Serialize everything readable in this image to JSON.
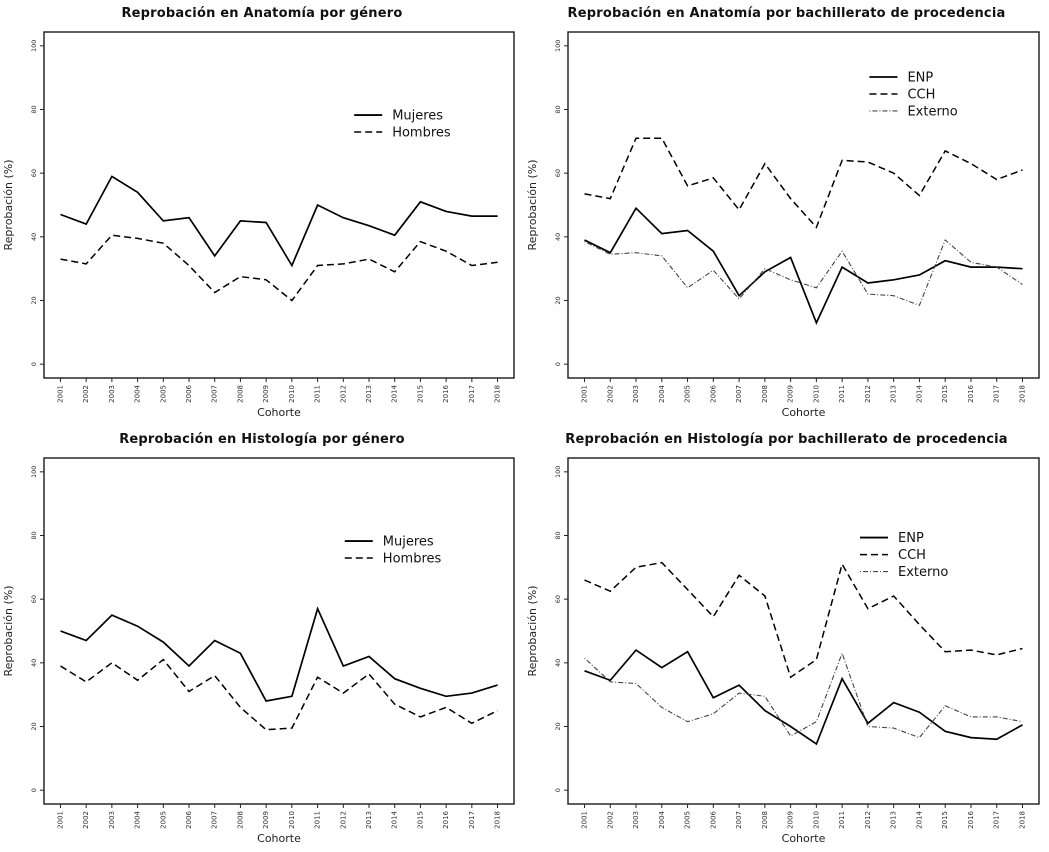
{
  "page": {
    "background": "#ffffff",
    "line_color": "#000000",
    "dashdot_color": "#444444",
    "box_color": "#1a1a1a"
  },
  "chart_data": [
    {
      "type": "line",
      "title": "Reprobación en Anatomía por género",
      "xlabel": "Cohorte",
      "ylabel": "Reprobación (%)",
      "ylim": [
        0,
        100
      ],
      "y_ticks": [
        0,
        20,
        40,
        60,
        80,
        100
      ],
      "grid": false,
      "legend_position": "upper-right-inside",
      "legend": {
        "x": 0.66,
        "y": 0.24
      },
      "categories": [
        "2001",
        "2002",
        "2003",
        "2004",
        "2005",
        "2006",
        "2007",
        "2008",
        "2009",
        "2010",
        "2011",
        "2012",
        "2013",
        "2014",
        "2015",
        "2016",
        "2017",
        "2018"
      ],
      "series": [
        {
          "name": "Mujeres",
          "style": "solid",
          "values": [
            47,
            44,
            59,
            54,
            45,
            46,
            34,
            45,
            44.5,
            31,
            50,
            46,
            43.5,
            40.5,
            51,
            48,
            46.5,
            46.5
          ]
        },
        {
          "name": "Hombres",
          "style": "dashed",
          "values": [
            33,
            31.5,
            40.5,
            39.5,
            38,
            31,
            22.5,
            27.5,
            26.5,
            20,
            31,
            31.5,
            33,
            29,
            38.5,
            35.5,
            31,
            32
          ]
        }
      ]
    },
    {
      "type": "line",
      "title": "Reprobación en Anatomía por bachillerato de procedencia",
      "xlabel": "Cohorte",
      "ylabel": "Reprobación (%)",
      "ylim": [
        0,
        100
      ],
      "y_ticks": [
        0,
        20,
        40,
        60,
        80,
        100
      ],
      "grid": false,
      "legend_position": "upper-right-inside",
      "legend": {
        "x": 0.64,
        "y": 0.13
      },
      "categories": [
        "2001",
        "2002",
        "2003",
        "2004",
        "2005",
        "2006",
        "2007",
        "2008",
        "2009",
        "2010",
        "2011",
        "2012",
        "2013",
        "2014",
        "2015",
        "2016",
        "2017",
        "2018"
      ],
      "series": [
        {
          "name": "ENP",
          "style": "solid",
          "values": [
            39,
            35,
            49,
            41,
            42,
            35.5,
            21.5,
            29,
            33.5,
            13,
            30.5,
            25.5,
            26.5,
            28,
            32.5,
            30.5,
            30.5,
            30
          ]
        },
        {
          "name": "CCH",
          "style": "dashed",
          "values": [
            53.5,
            52,
            71,
            71,
            56,
            58.5,
            48.5,
            63,
            52,
            43,
            64,
            63.5,
            60,
            53,
            67,
            63,
            58,
            61
          ]
        },
        {
          "name": "Externo",
          "style": "dashdot",
          "values": [
            38.5,
            34.5,
            35,
            34,
            24,
            29.5,
            20.5,
            30,
            26.5,
            24,
            35.5,
            22,
            21.5,
            18.5,
            39,
            32,
            30.5,
            25
          ]
        }
      ]
    },
    {
      "type": "line",
      "title": "Reprobación en Histología por género",
      "xlabel": "Cohorte",
      "ylabel": "Reprobación (%)",
      "ylim": [
        0,
        100
      ],
      "y_ticks": [
        0,
        20,
        40,
        60,
        80,
        100
      ],
      "grid": false,
      "legend_position": "upper-right-inside",
      "legend": {
        "x": 0.64,
        "y": 0.24
      },
      "categories": [
        "2001",
        "2002",
        "2003",
        "2004",
        "2005",
        "2006",
        "2007",
        "2008",
        "2009",
        "2010",
        "2011",
        "2012",
        "2013",
        "2014",
        "2015",
        "2016",
        "2017",
        "2018"
      ],
      "series": [
        {
          "name": "Mujeres",
          "style": "solid",
          "values": [
            50,
            47,
            55,
            51.5,
            46.5,
            39,
            47,
            43,
            28,
            29.5,
            57,
            39,
            42,
            35,
            32,
            29.5,
            30.5,
            33
          ]
        },
        {
          "name": "Hombres",
          "style": "dashed",
          "values": [
            39,
            34,
            40,
            34.5,
            41,
            31,
            36,
            26,
            19,
            19.5,
            35.5,
            30.5,
            36.5,
            27,
            23,
            26,
            21,
            25
          ]
        }
      ]
    },
    {
      "type": "line",
      "title": "Reprobación en Histología por bachillerato de procedencia",
      "xlabel": "Cohorte",
      "ylabel": "Reprobación (%)",
      "ylim": [
        0,
        100
      ],
      "y_ticks": [
        0,
        20,
        40,
        60,
        80,
        100
      ],
      "grid": false,
      "legend_position": "upper-right-inside",
      "legend": {
        "x": 0.62,
        "y": 0.23
      },
      "categories": [
        "2001",
        "2002",
        "2003",
        "2004",
        "2005",
        "2006",
        "2007",
        "2008",
        "2009",
        "2010",
        "2011",
        "2012",
        "2013",
        "2014",
        "2015",
        "2016",
        "2017",
        "2018"
      ],
      "series": [
        {
          "name": "ENP",
          "style": "solid",
          "values": [
            37.5,
            34.5,
            44,
            38.5,
            43.5,
            29,
            33,
            25,
            20,
            14.5,
            35,
            21,
            27.5,
            24.5,
            18.5,
            16.5,
            16,
            20.5
          ]
        },
        {
          "name": "CCH",
          "style": "dashed",
          "values": [
            66,
            62.5,
            70,
            71.5,
            63,
            54.5,
            67.5,
            61,
            35.5,
            41,
            71,
            57,
            61,
            52,
            43.5,
            44,
            42.5,
            44.5
          ]
        },
        {
          "name": "Externo",
          "style": "dashdot",
          "values": [
            41.5,
            34,
            33.5,
            26,
            21.5,
            24,
            30.5,
            29.5,
            17,
            21.5,
            43,
            20,
            19.5,
            16.5,
            26.5,
            23,
            23,
            21.5
          ]
        }
      ]
    }
  ]
}
